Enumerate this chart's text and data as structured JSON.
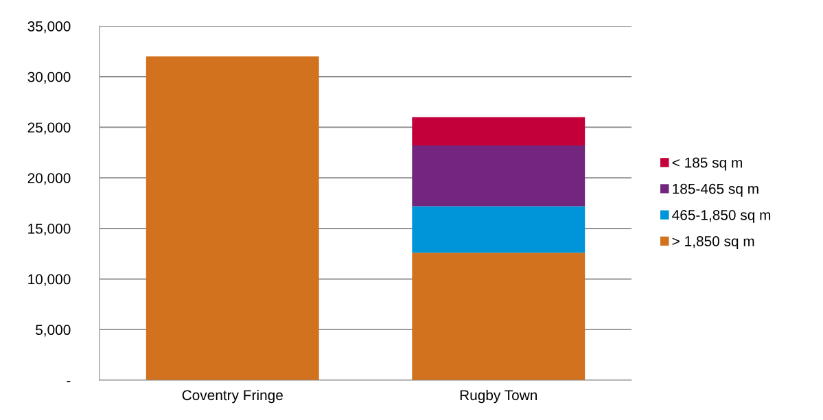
{
  "chart_data": {
    "type": "bar",
    "stacked": true,
    "categories": [
      "Coventry Fringe",
      "Rugby Town"
    ],
    "series": [
      {
        "name": "> 1,850 sq m",
        "color": "#d2711e",
        "values": [
          32000,
          12600
        ]
      },
      {
        "name": "465-1,850 sq m",
        "color": "#0094d8",
        "values": [
          null,
          4600
        ]
      },
      {
        "name": "185-465 sq m",
        "color": "#72267e",
        "values": [
          null,
          6000
        ]
      },
      {
        "name": "< 185 sq m",
        "color": "#c4003a",
        "values": [
          null,
          2800
        ]
      }
    ],
    "ylim": [
      0,
      35000
    ],
    "yticks": [
      {
        "value": 0,
        "label": "-"
      },
      {
        "value": 5000,
        "label": "5,000"
      },
      {
        "value": 10000,
        "label": "10,000"
      },
      {
        "value": 15000,
        "label": "15,000"
      },
      {
        "value": 20000,
        "label": "20,000"
      },
      {
        "value": 25000,
        "label": "25,000"
      },
      {
        "value": 30000,
        "label": "30,000"
      },
      {
        "value": 35000,
        "label": "35,000"
      }
    ],
    "grid": "y",
    "legend": "right"
  }
}
